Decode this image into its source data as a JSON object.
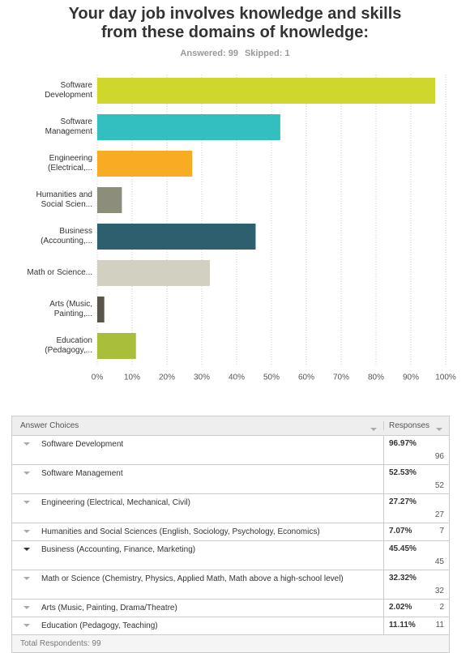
{
  "chart_data": {
    "type": "hbar",
    "title": "Your day job involves knowledge and skills from these domains of knowledge:",
    "answered": "Answered: 99",
    "skipped": "Skipped: 1",
    "categories": [
      "Software Development",
      "Software Management",
      "Engineering (Electrical,...",
      "Humanities and Social Scien...",
      "Business (Accounting,...",
      "Math or Science...",
      "Arts (Music, Painting,...",
      "Education (Pedagogy,..."
    ],
    "values": [
      96.97,
      52.53,
      27.27,
      7.07,
      45.45,
      32.32,
      2.02,
      11.11
    ],
    "colors": [
      "#cfd62c",
      "#33bec0",
      "#f7ac24",
      "#8d8d7b",
      "#2d5f6e",
      "#d2d0c1",
      "#5a554b",
      "#a9bf3b"
    ],
    "xlim": [
      0,
      100
    ],
    "xticks": [
      {
        "value": 0,
        "label": "0%"
      },
      {
        "value": 10,
        "label": "10%"
      },
      {
        "value": 20,
        "label": "20%"
      },
      {
        "value": 30,
        "label": "30%"
      },
      {
        "value": 40,
        "label": "40%"
      },
      {
        "value": 50,
        "label": "50%"
      },
      {
        "value": 60,
        "label": "60%"
      },
      {
        "value": 70,
        "label": "70%"
      },
      {
        "value": 80,
        "label": "80%"
      },
      {
        "value": 90,
        "label": "90%"
      },
      {
        "value": 100,
        "label": "100%"
      }
    ],
    "grid": true
  },
  "table": {
    "headers": [
      "Answer Choices",
      "Responses"
    ],
    "rows": [
      [
        "Software Development",
        "96.97%",
        96
      ],
      [
        "Software Management",
        "52.53%",
        52
      ],
      [
        "Engineering (Electrical, Mechanical, Civil)",
        "27.27%",
        27
      ],
      [
        "Humanities and Social Sciences (English, Sociology, Psychology, Economics)",
        "7.07%",
        7
      ],
      [
        "Business (Accounting, Finance, Marketing)",
        "45.45%",
        45
      ],
      [
        "Math or Science (Chemistry, Physics, Applied Math, Math above a high-school level)",
        "32.32%",
        32
      ],
      [
        "Arts (Music, Painting, Drama/Theatre)",
        "2.02%",
        2
      ],
      [
        "Education (Pedagogy, Teaching)",
        "11.11%",
        11
      ]
    ],
    "footer": "Total Respondents: 99"
  }
}
